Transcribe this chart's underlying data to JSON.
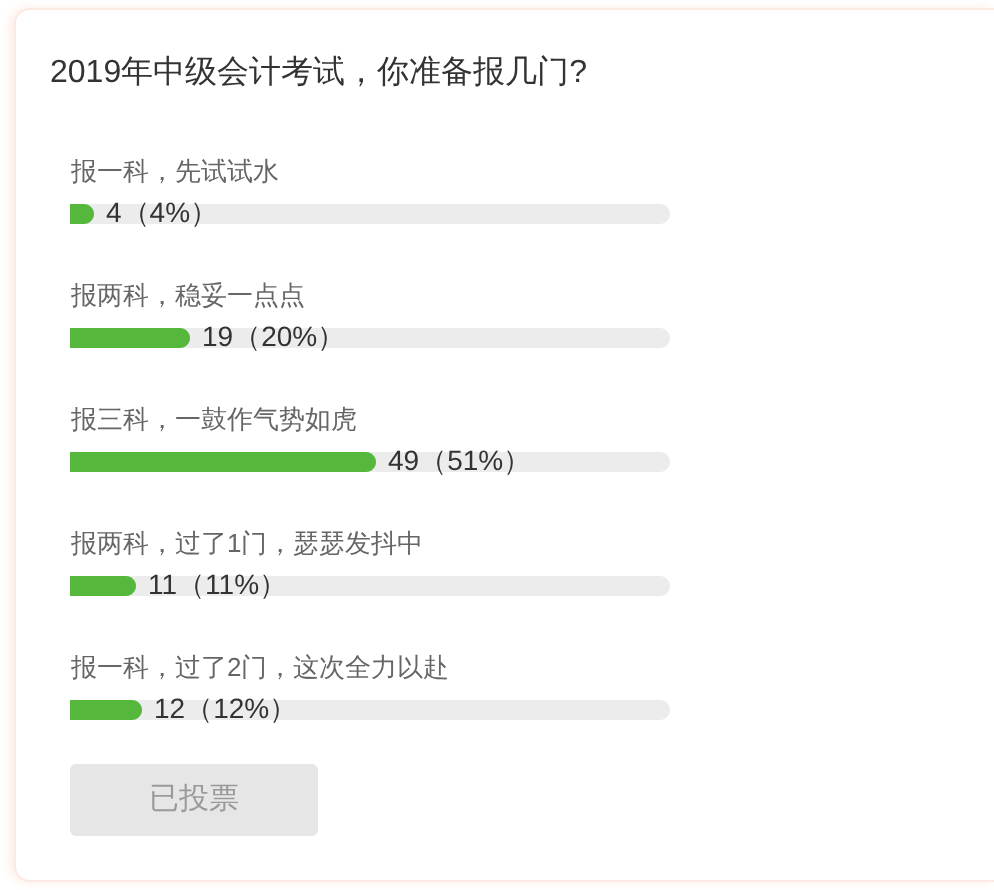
{
  "chart_data": {
    "type": "bar",
    "orientation": "horizontal",
    "title": "2019年中级会计考试，你准备报几门?",
    "categories": [
      "报一科，先试试水",
      "报两科，稳妥一点点",
      "报三科，一鼓作气势如虎",
      "报两科，过了1门，瑟瑟发抖中",
      "报一科，过了2门，这次全力以赴"
    ],
    "values": [
      4,
      20,
      51,
      11,
      12
    ],
    "value_labels": [
      "4（4%）",
      "19（20%）",
      "49（51%）",
      "11（11%）",
      "12（12%）"
    ],
    "color": "#55b83c",
    "xlim": [
      0,
      100
    ],
    "tick_labels": "y",
    "annotations": [
      "已投票"
    ]
  }
}
